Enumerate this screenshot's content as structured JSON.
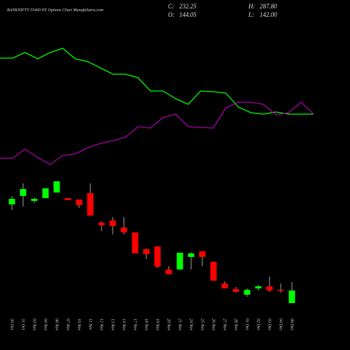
{
  "chart_data": {
    "type": "candlestick",
    "title": "BANKNIFTY 55400 PE Options Chart MunafaSutra.com",
    "summary": [
      {
        "label": "C:",
        "value": "232.25"
      },
      {
        "label": "O:",
        "value": "144.05"
      },
      {
        "label": "H:",
        "value": "287.80"
      },
      {
        "label": "L:",
        "value": "142.00"
      }
    ],
    "categories": [
      "30 Oct",
      "31 Oct",
      "03 Nov",
      "04 Nov",
      "06 Nov",
      "07 Nov",
      "10 Nov",
      "11 Nov",
      "12 Nov",
      "13 Nov",
      "14 Nov",
      "17 Nov",
      "18 Nov",
      "19 Nov",
      "20 Nov",
      "21 Nov",
      "24 Nov",
      "25 Nov",
      "26 Nov",
      "27 Nov",
      "28 Nov",
      "01 Dec",
      "02 Dec",
      "03 Dec",
      "04 Dec",
      "08 Dec"
    ],
    "open": [
      79,
      85,
      81.5,
      83.5,
      87.5,
      83.5,
      82.5,
      87,
      66,
      67.5,
      62.5,
      59,
      47,
      49,
      32.5,
      32.5,
      41.5,
      45.5,
      38,
      22.5,
      18.5,
      14.5,
      19,
      20.5,
      18,
      8.5
    ],
    "high": [
      85,
      94,
      84,
      90.5,
      95.5,
      83.5,
      82.5,
      94,
      67,
      70,
      70,
      59,
      47.5,
      49,
      35,
      44.5,
      45,
      45.5,
      38,
      24,
      20,
      19,
      21.5,
      27.5,
      22.5,
      23.5
    ],
    "low": [
      75,
      77.5,
      80,
      83.5,
      87.5,
      82,
      76.5,
      71,
      60,
      57.5,
      57.5,
      44,
      40,
      33.5,
      29,
      32.5,
      32.5,
      35,
      24.5,
      19,
      16,
      13,
      17.5,
      16.5,
      16,
      8.5
    ],
    "close": [
      83,
      90,
      83,
      90.5,
      95.5,
      82,
      78.5,
      71,
      64,
      63.5,
      59,
      44,
      43.5,
      34.5,
      29,
      44.5,
      44,
      41.5,
      24.5,
      19,
      16.5,
      18,
      20.5,
      17.5,
      17.5,
      17.5
    ],
    "up_color": "#00ff00",
    "down_color": "#ff0000",
    "ylim": [
      0,
      100
    ],
    "lines": [
      {
        "color": "#00ff00",
        "values": [
          83.5,
          83.5,
          87.5,
          83,
          87.5,
          90.5,
          83,
          81,
          76.5,
          72,
          72,
          69.5,
          60,
          60,
          54.5,
          50.5,
          60,
          59.5,
          58.5,
          48.5,
          44.5,
          43.5,
          45,
          43.5,
          43.5,
          43.5
        ]
      },
      {
        "color": "#aa00aa",
        "values": [
          12,
          12,
          18.5,
          12.5,
          7.5,
          14,
          15,
          19.5,
          22.5,
          24.5,
          27,
          34.5,
          33.5,
          41,
          43.5,
          34.5,
          34,
          33.5,
          48,
          52,
          52,
          50.5,
          43,
          44.5,
          52,
          43.5
        ]
      }
    ],
    "lines_ylim": [
      0,
      100
    ]
  }
}
